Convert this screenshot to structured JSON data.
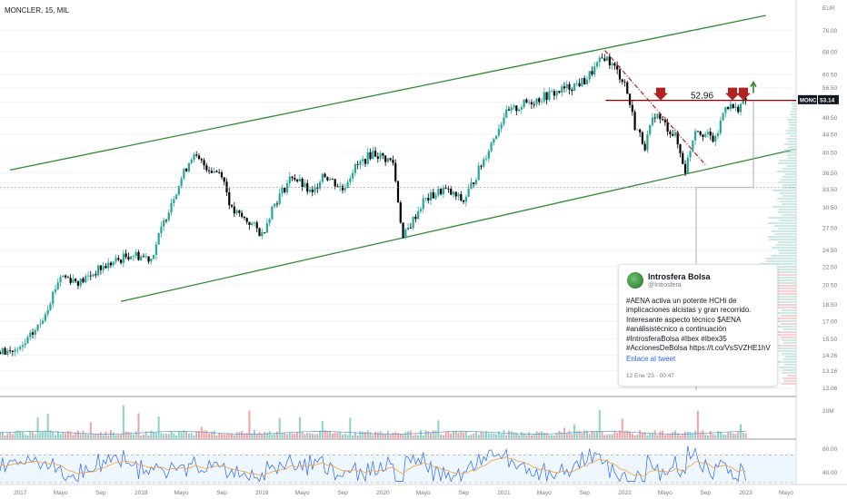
{
  "symbol_header": "MONCLER, 15, MIL",
  "price_axis": {
    "currency": "EUR",
    "ticks": [
      12.06,
      13.16,
      14.26,
      15.5,
      17.0,
      18.5,
      20.5,
      22.5,
      24.5,
      27.5,
      30.5,
      33.5,
      36.5,
      40.5,
      44.5,
      48.5,
      52.5,
      56.5,
      60.5,
      68.0,
      76.0
    ]
  },
  "time_axis": [
    "2017",
    "Mayo",
    "Sep",
    "2018",
    "Mayo",
    "Sep",
    "2019",
    "Mayo",
    "Sep",
    "2020",
    "Mayo",
    "Sep",
    "2021",
    "Mayo",
    "Sep",
    "2022",
    "Mayo",
    "Sep",
    "2023",
    "Mayo"
  ],
  "current_price": {
    "symbol": "MONC",
    "value": "53.14"
  },
  "resistance": {
    "label": "52.96",
    "value": 52.96
  },
  "volume_axis": {
    "label": "20M"
  },
  "rsi_axis": {
    "ticks": [
      "80.00",
      "40.00"
    ]
  },
  "colors": {
    "up": "#26a69a",
    "down": "#000000",
    "channel": "#2e8b2e",
    "resistance": "#8b0000",
    "marker": "#b22222",
    "arrow_up": "#2e8b2e",
    "rsi": "#2962ff",
    "rsi_ma": "#f0a030",
    "price_badge": "#131722"
  },
  "tweet": {
    "name": "Introsfera Bolsa",
    "handle": "@Introsfera",
    "text": "#AENA activa un potente HCHi de implicaciones alcistas y gran recorrido. Interesante aspecto técnico $AENA #análisistécnico a continuación #IntrosferaBolsa #Ibex #Ibex35 #AccionesDeBolsa https://t.co/VsSVZHE1hV",
    "link": "Enlace al tweet",
    "time": "12 Ene '23 - 00:47"
  },
  "chart_data": {
    "type": "candlestick",
    "title": "",
    "x_range": [
      "2016-11",
      "2023-06"
    ],
    "y_scale": "log",
    "y_range": [
      11.8,
      82
    ],
    "price_path": [
      {
        "x": "2016-11",
        "close": 14.5
      },
      {
        "x": "2017-01",
        "close": 14.6
      },
      {
        "x": "2017-03",
        "close": 16.8
      },
      {
        "x": "2017-05",
        "close": 21.5
      },
      {
        "x": "2017-07",
        "close": 20.8
      },
      {
        "x": "2017-09",
        "close": 22.3
      },
      {
        "x": "2017-12",
        "close": 24.0
      },
      {
        "x": "2018-02",
        "close": 23.5
      },
      {
        "x": "2018-04",
        "close": 31.5
      },
      {
        "x": "2018-06",
        "close": 39.8
      },
      {
        "x": "2018-08",
        "close": 37.0
      },
      {
        "x": "2018-09",
        "close": 36.5
      },
      {
        "x": "2018-10",
        "close": 30.0
      },
      {
        "x": "2018-12",
        "close": 28.0
      },
      {
        "x": "2019-01",
        "close": 26.5
      },
      {
        "x": "2019-02",
        "close": 30.5
      },
      {
        "x": "2019-04",
        "close": 36.0
      },
      {
        "x": "2019-06",
        "close": 32.5
      },
      {
        "x": "2019-07",
        "close": 36.5
      },
      {
        "x": "2019-09",
        "close": 33.5
      },
      {
        "x": "2019-10",
        "close": 37.0
      },
      {
        "x": "2019-12",
        "close": 40.5
      },
      {
        "x": "2020-02",
        "close": 38.5
      },
      {
        "x": "2020-03",
        "close": 26.0
      },
      {
        "x": "2020-05",
        "close": 31.5
      },
      {
        "x": "2020-07",
        "close": 33.5
      },
      {
        "x": "2020-09",
        "close": 31.5
      },
      {
        "x": "2020-11",
        "close": 39.0
      },
      {
        "x": "2021-01",
        "close": 49.0
      },
      {
        "x": "2021-03",
        "close": 52.0
      },
      {
        "x": "2021-06",
        "close": 55.0
      },
      {
        "x": "2021-09",
        "close": 58.5
      },
      {
        "x": "2021-11",
        "close": 66.5
      },
      {
        "x": "2021-12",
        "close": 62.5
      },
      {
        "x": "2022-01",
        "close": 58.0
      },
      {
        "x": "2022-02",
        "close": 46.5
      },
      {
        "x": "2022-03",
        "close": 42.0
      },
      {
        "x": "2022-04",
        "close": 49.5
      },
      {
        "x": "2022-06",
        "close": 44.0
      },
      {
        "x": "2022-07",
        "close": 37.0
      },
      {
        "x": "2022-08",
        "close": 46.0
      },
      {
        "x": "2022-10",
        "close": 43.0
      },
      {
        "x": "2022-11",
        "close": 52.0
      },
      {
        "x": "2022-12",
        "close": 50.5
      },
      {
        "x": "2023-01",
        "close": 53.14
      }
    ],
    "channel_upper": [
      {
        "x": "2016-12",
        "y": 37.0
      },
      {
        "x": "2023-03",
        "y": 82.0
      }
    ],
    "channel_lower": [
      {
        "x": "2017-11",
        "y": 18.8
      },
      {
        "x": "2023-06",
        "y": 41.2
      }
    ],
    "downtrend": [
      {
        "x": "2021-11",
        "y": 68.5
      },
      {
        "x": "2022-09",
        "y": 38.0
      }
    ],
    "resistance_level": 52.96,
    "rsi": {
      "range": [
        30,
        90
      ],
      "upper_band": 70,
      "lower_band": 30
    }
  }
}
